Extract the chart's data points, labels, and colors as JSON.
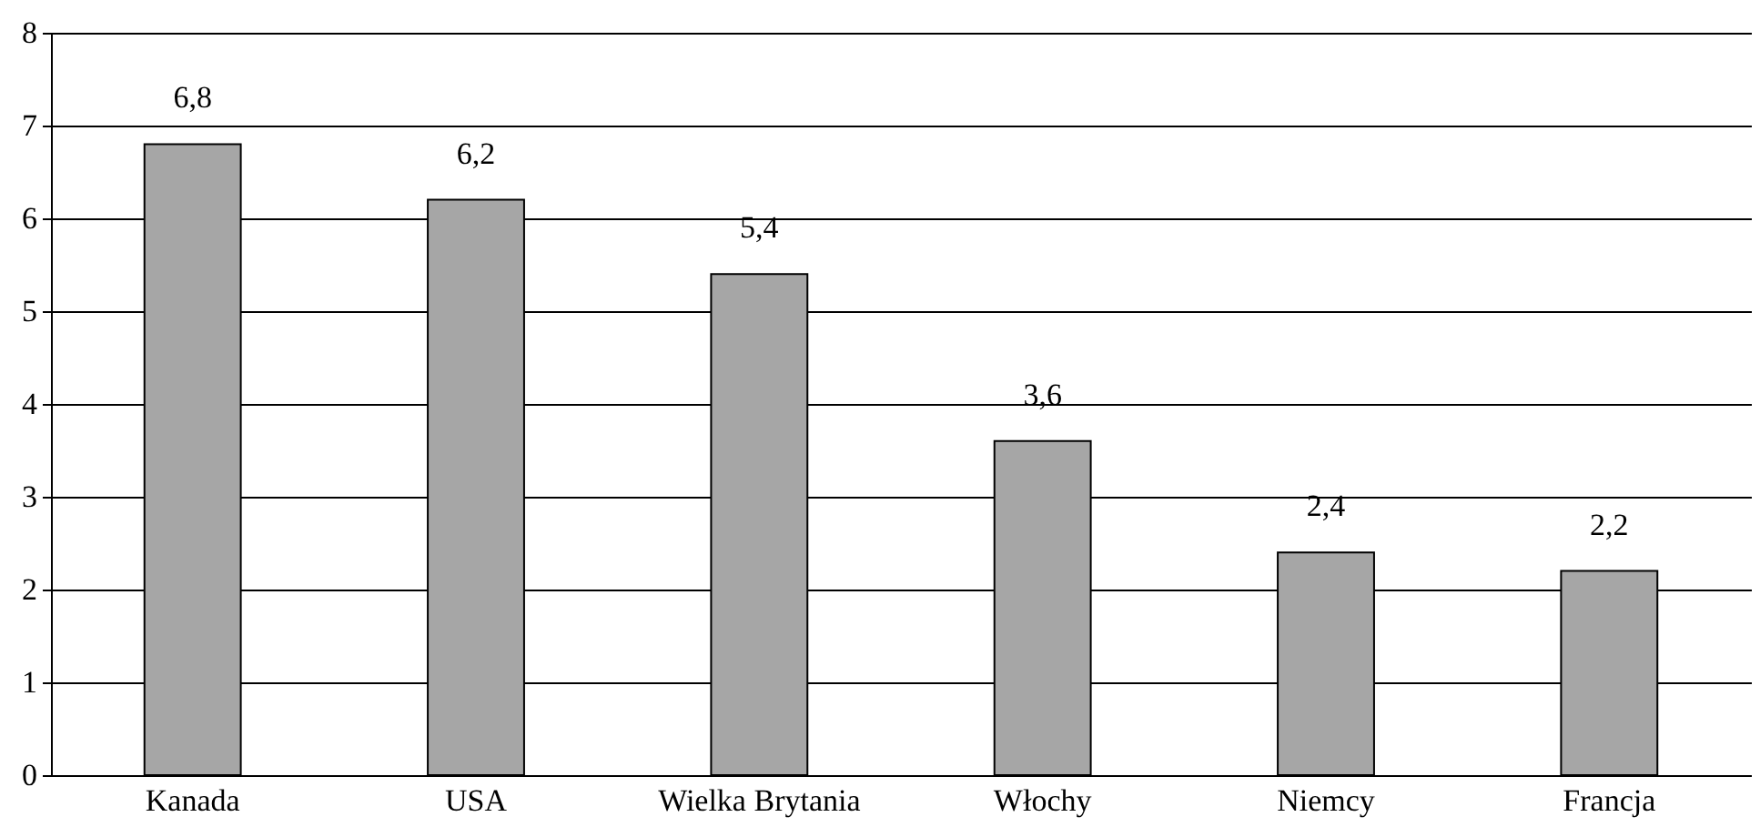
{
  "chart_data": {
    "type": "bar",
    "categories": [
      "Kanada",
      "USA",
      "Wielka Brytania",
      "Włochy",
      "Niemcy",
      "Francja"
    ],
    "values": [
      6.8,
      6.2,
      5.4,
      3.6,
      2.4,
      2.2
    ],
    "value_labels": [
      "6,8",
      "6,2",
      "5,4",
      "3,6",
      "2,4",
      "2,2"
    ],
    "color": "#a6a6a6",
    "ylim": [
      0,
      8
    ],
    "yticks": [
      0,
      1,
      2,
      3,
      4,
      5,
      6,
      7,
      8
    ],
    "grid": "y"
  }
}
